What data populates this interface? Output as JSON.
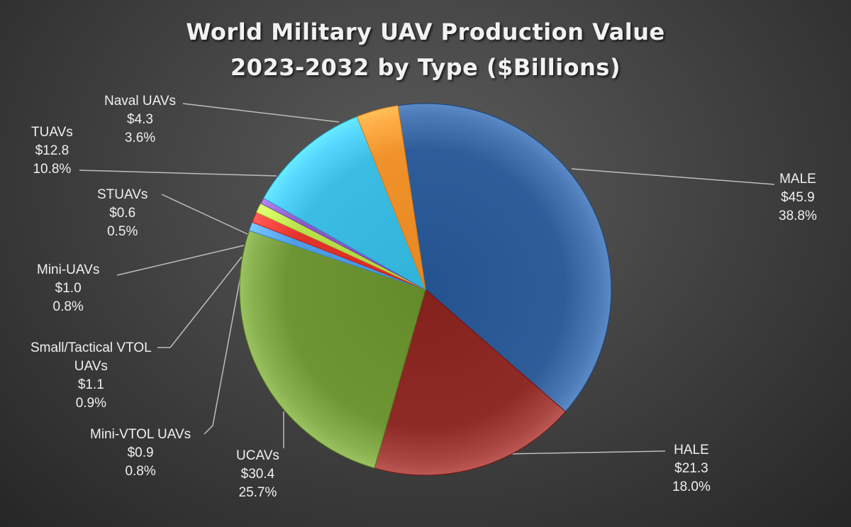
{
  "chart_data": {
    "type": "pie",
    "title": [
      "World Military UAV Production Value",
      "2023-2032 by Type ($Billions)"
    ],
    "slices": [
      {
        "name": "MALE",
        "value": 45.9,
        "value_label": "$45.9",
        "percent_label": "38.8%",
        "color": "#2e5d9a"
      },
      {
        "name": "HALE",
        "value": 21.3,
        "value_label": "$21.3",
        "percent_label": "18.0%",
        "color": "#8e2b27"
      },
      {
        "name": "UCAVs",
        "value": 30.4,
        "value_label": "$30.4",
        "percent_label": "25.7%",
        "color": "#6e9534"
      },
      {
        "name": "Mini-VTOL UAVs",
        "value": 0.9,
        "value_label": "$0.9",
        "percent_label": "0.8%",
        "color": "#4f9de6"
      },
      {
        "name": "Small/Tactical VTOL UAVs",
        "name_lines": [
          "Small/Tactical VTOL",
          "UAVs"
        ],
        "value": 1.1,
        "value_label": "$1.1",
        "percent_label": "0.9%",
        "color": "#e2332c"
      },
      {
        "name": "Mini-UAVs",
        "value": 1.0,
        "value_label": "$1.0",
        "percent_label": "0.8%",
        "color": "#b8e04a"
      },
      {
        "name": "STUAVs",
        "value": 0.6,
        "value_label": "$0.6",
        "percent_label": "0.5%",
        "color": "#8a5ac6"
      },
      {
        "name": "TUAVs",
        "value": 12.8,
        "value_label": "$12.8",
        "percent_label": "10.8%",
        "color": "#3bbde3"
      },
      {
        "name": "Naval UAVs",
        "value": 4.3,
        "value_label": "$4.3",
        "percent_label": "3.6%",
        "color": "#f0922b"
      }
    ]
  }
}
